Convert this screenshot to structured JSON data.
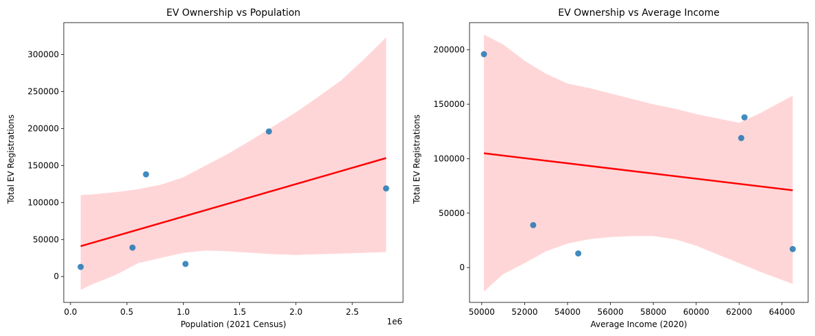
{
  "chart_data": [
    {
      "type": "scatter",
      "title": "EV Ownership vs Population",
      "xlabel": "Population (2021 Census)",
      "ylabel": "Total EV Registrations",
      "x_offset_label": "1e6",
      "xlim": [
        -0.06,
        2.95
      ],
      "ylim": [
        -35000,
        343000
      ],
      "x_ticks": [
        0.0,
        0.5,
        1.0,
        1.5,
        2.0,
        2.5
      ],
      "x_tick_labels": [
        "0.0",
        "0.5",
        "1.0",
        "1.5",
        "2.0",
        "2.5"
      ],
      "y_ticks": [
        0,
        50000,
        100000,
        150000,
        200000,
        250000,
        300000
      ],
      "y_tick_labels": [
        "0",
        "50000",
        "100000",
        "150000",
        "200000",
        "250000",
        "300000"
      ],
      "grid": false,
      "points": {
        "x": [
          0.09,
          0.55,
          0.67,
          1.02,
          1.76,
          2.8
        ],
        "y": [
          13000,
          39000,
          138000,
          17000,
          196000,
          119000
        ]
      },
      "regression_line": {
        "x": [
          0.09,
          2.8
        ],
        "y": [
          41000,
          160000
        ]
      },
      "confidence_band": {
        "x": [
          0.09,
          0.2,
          0.4,
          0.6,
          0.8,
          1.0,
          1.2,
          1.4,
          1.6,
          1.8,
          2.0,
          2.2,
          2.4,
          2.6,
          2.8
        ],
        "upper": [
          110000,
          111000,
          114000,
          118000,
          124000,
          134000,
          150000,
          166000,
          184000,
          203000,
          222000,
          243000,
          265000,
          293000,
          323000
        ],
        "lower": [
          -18000,
          -10000,
          2000,
          18000,
          25000,
          32000,
          35000,
          34000,
          32000,
          30000,
          29000,
          30000,
          31000,
          32000,
          33000
        ]
      },
      "colors": {
        "points": "#1f77b4",
        "line": "#ff0000",
        "band": "#ffd6d8"
      }
    },
    {
      "type": "scatter",
      "title": "EV Ownership vs Average Income",
      "xlabel": "Average Income (2020)",
      "ylabel": "Total EV Registrations",
      "xlim": [
        49430,
        65220
      ],
      "ylim": [
        -32000,
        225000
      ],
      "x_ticks": [
        50000,
        52000,
        54000,
        56000,
        58000,
        60000,
        62000,
        64000
      ],
      "x_tick_labels": [
        "50000",
        "52000",
        "54000",
        "56000",
        "58000",
        "60000",
        "62000",
        "64000"
      ],
      "y_ticks": [
        0,
        50000,
        100000,
        150000,
        200000
      ],
      "y_tick_labels": [
        "0",
        "50000",
        "100000",
        "150000",
        "200000"
      ],
      "grid": false,
      "points": {
        "x": [
          50100,
          52400,
          54500,
          62100,
          62250,
          64500
        ],
        "y": [
          196000,
          39000,
          13000,
          119000,
          138000,
          17000
        ]
      },
      "regression_line": {
        "x": [
          50100,
          64500
        ],
        "y": [
          105000,
          71000
        ]
      },
      "confidence_band": {
        "x": [
          50100,
          51000,
          52000,
          53000,
          54000,
          55000,
          56000,
          57000,
          58000,
          59000,
          60000,
          61000,
          62000,
          63000,
          64500
        ],
        "upper": [
          214000,
          205000,
          190000,
          178000,
          169000,
          165000,
          160000,
          155000,
          150000,
          146000,
          141000,
          137000,
          133000,
          142000,
          158000
        ],
        "lower": [
          -22000,
          -6000,
          4000,
          15000,
          22000,
          26000,
          28000,
          29000,
          29000,
          26000,
          20000,
          12000,
          4000,
          -4000,
          -15000
        ]
      },
      "colors": {
        "points": "#1f77b4",
        "line": "#ff0000",
        "band": "#ffd6d8"
      }
    }
  ]
}
